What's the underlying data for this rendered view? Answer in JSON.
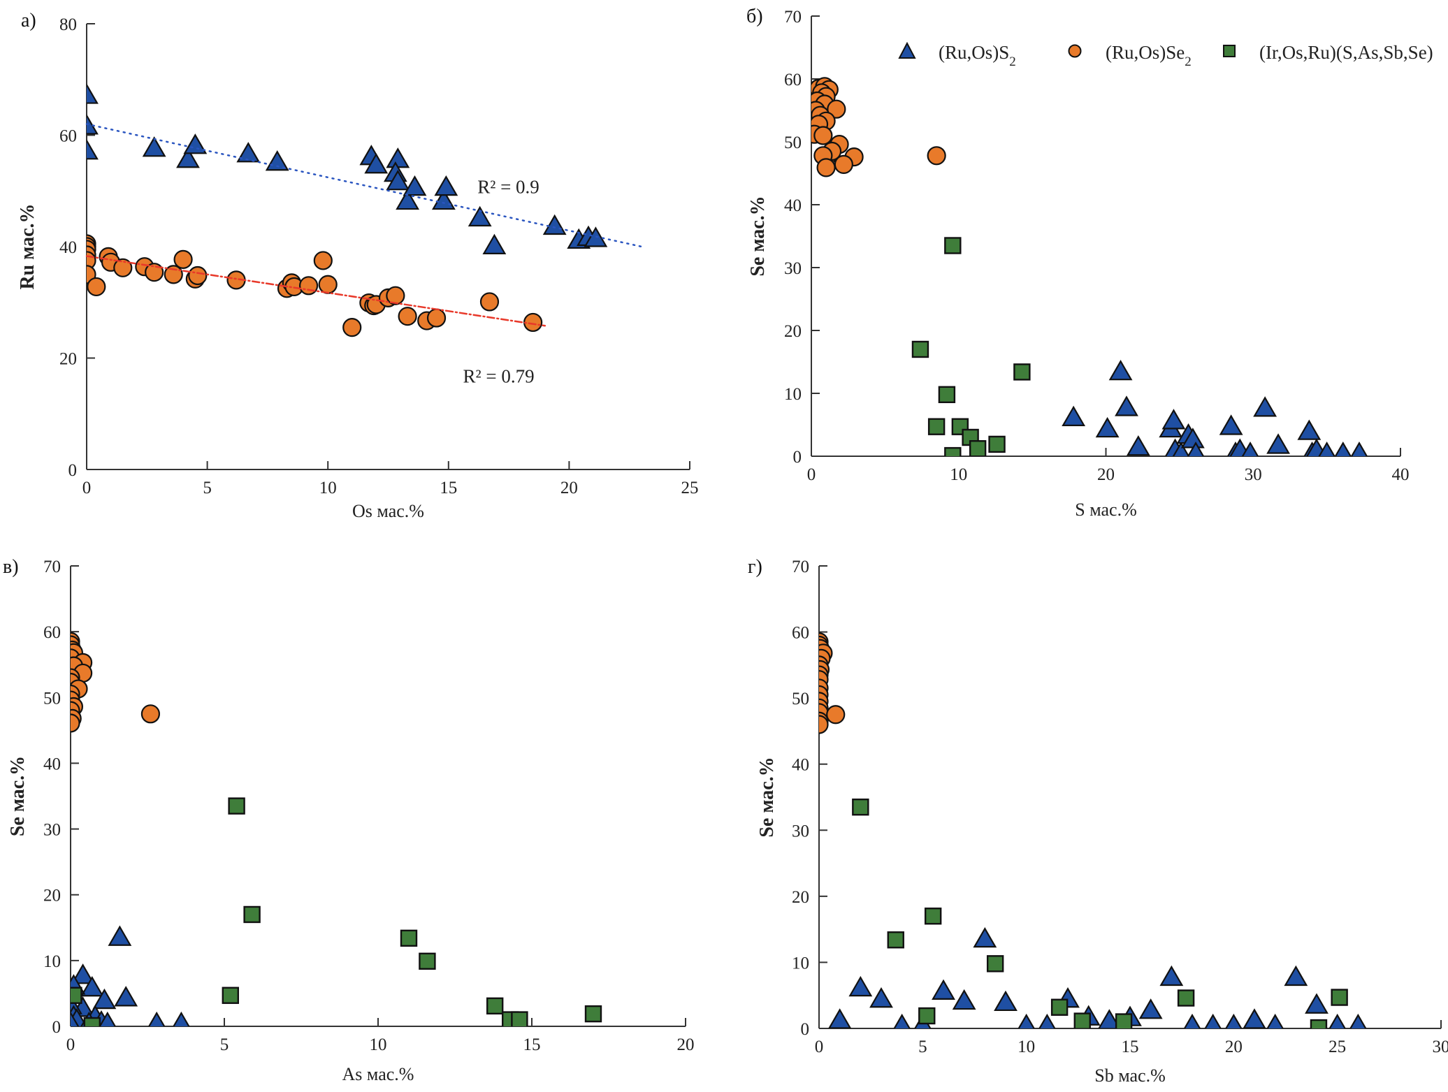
{
  "colors": {
    "ruos_s2": "#1f4fa3",
    "ruos_se2": "#e87a2a",
    "iros": "#3f7d3a",
    "trend_s2": "#2a55c0",
    "trend_se2": "#e8392a",
    "axis": "#333333",
    "outline": "#111111"
  },
  "legend": {
    "items": [
      {
        "key": "ruos_s2",
        "marker": "triangle",
        "label_main": "(Ru,Os)S",
        "label_sub": "2"
      },
      {
        "key": "ruos_se2",
        "marker": "circle",
        "label_main": "(Ru,Os)Se",
        "label_sub": "2"
      },
      {
        "key": "iros",
        "marker": "square",
        "label_main": "(Ir,Os,Ru)(S,As,Sb,Se)",
        "label_sub": ""
      }
    ]
  },
  "chart_data": [
    {
      "id": "a",
      "type": "scatter",
      "panel_label": "а)",
      "xlabel": "Os мас.%",
      "ylabel": "Ru мас.%",
      "xlim": [
        0,
        25
      ],
      "ylim": [
        0,
        80
      ],
      "xticks": [
        0,
        5,
        10,
        15,
        20,
        25
      ],
      "yticks": [
        0,
        20,
        40,
        60,
        80
      ],
      "grid": false,
      "series": [
        {
          "name": "(Ru,Os)S2",
          "key": "ruos_s2",
          "marker": "triangle",
          "points": [
            [
              0,
              67
            ],
            [
              0,
              61.5
            ],
            [
              0,
              57
            ],
            [
              2.8,
              57.5
            ],
            [
              4.2,
              55.5
            ],
            [
              4.5,
              58
            ],
            [
              6.7,
              56.5
            ],
            [
              7.9,
              55
            ],
            [
              11.8,
              56
            ],
            [
              12,
              54.5
            ],
            [
              12.9,
              55.5
            ],
            [
              12.8,
              53
            ],
            [
              12.9,
              51.5
            ],
            [
              13.3,
              48
            ],
            [
              13.6,
              50.5
            ],
            [
              14.8,
              48
            ],
            [
              14.9,
              50.5
            ],
            [
              16.3,
              45
            ],
            [
              16.9,
              40
            ],
            [
              19.4,
              43.5
            ],
            [
              20.4,
              41
            ],
            [
              20.8,
              41.5
            ],
            [
              21.1,
              41.3
            ]
          ]
        },
        {
          "name": "(Ru,Os)Se2",
          "key": "ruos_se2",
          "marker": "circle",
          "points": [
            [
              0,
              40.5
            ],
            [
              0,
              40
            ],
            [
              0,
              39.5
            ],
            [
              0,
              38.5
            ],
            [
              0,
              37.5
            ],
            [
              0,
              35
            ],
            [
              0.4,
              32.8
            ],
            [
              0.9,
              38.2
            ],
            [
              1,
              37.2
            ],
            [
              1.5,
              36.2
            ],
            [
              2.4,
              36.4
            ],
            [
              2.8,
              35.4
            ],
            [
              3.6,
              35
            ],
            [
              4,
              37.7
            ],
            [
              4.5,
              34.2
            ],
            [
              4.6,
              34.8
            ],
            [
              6.2,
              34
            ],
            [
              8.3,
              32.5
            ],
            [
              8.5,
              33.5
            ],
            [
              8.6,
              32.8
            ],
            [
              9.2,
              33
            ],
            [
              9.8,
              37.5
            ],
            [
              10,
              33.2
            ],
            [
              11,
              25.5
            ],
            [
              11.7,
              29.9
            ],
            [
              11.9,
              29.4
            ],
            [
              12,
              29.6
            ],
            [
              12.5,
              30.8
            ],
            [
              12.8,
              31.2
            ],
            [
              13.3,
              27.5
            ],
            [
              14.1,
              26.7
            ],
            [
              14.5,
              27.2
            ],
            [
              16.7,
              30.1
            ],
            [
              18.5,
              26.4
            ]
          ]
        }
      ],
      "trendlines": [
        {
          "series": "(Ru,Os)S2",
          "style": "dotted",
          "x": [
            0,
            23
          ],
          "y": [
            62,
            40
          ],
          "label": "R² = 0.9",
          "r2": 0.9
        },
        {
          "series": "(Ru,Os)Se2",
          "style": "dash-dot",
          "x": [
            0,
            19
          ],
          "y": [
            38.3,
            25.8
          ],
          "label": "R² = 0.79",
          "r2": 0.79
        }
      ]
    },
    {
      "id": "b",
      "type": "scatter",
      "panel_label": "б)",
      "xlabel": "S мас.%",
      "ylabel": "Se мас.%",
      "xlim": [
        0,
        40
      ],
      "ylim": [
        0,
        70
      ],
      "xticks": [
        0,
        10,
        20,
        30,
        40
      ],
      "yticks": [
        0,
        10,
        20,
        30,
        40,
        50,
        60,
        70
      ],
      "grid": false,
      "legend_position": "top",
      "series": [
        {
          "name": "(Ru,Os)S2",
          "key": "ruos_s2",
          "marker": "triangle",
          "points": [
            [
              17.8,
              6
            ],
            [
              20.1,
              4.2
            ],
            [
              21,
              13.3
            ],
            [
              21.4,
              7.6
            ],
            [
              22.2,
              1.3
            ],
            [
              24.4,
              4.2
            ],
            [
              24.6,
              5.5
            ],
            [
              24.7,
              0.8
            ],
            [
              25.1,
              0.3
            ],
            [
              25.6,
              3.2
            ],
            [
              25.9,
              2.5
            ],
            [
              26.1,
              0.3
            ],
            [
              28.5,
              4.6
            ],
            [
              28.8,
              0.3
            ],
            [
              29.1,
              0.8
            ],
            [
              29.8,
              0.3
            ],
            [
              30.8,
              7.5
            ],
            [
              31.7,
              1.6
            ],
            [
              33.8,
              3.8
            ],
            [
              34,
              0.3
            ],
            [
              34.3,
              0.8
            ],
            [
              35,
              0.3
            ],
            [
              36.1,
              0.3
            ],
            [
              37.2,
              0.3
            ]
          ]
        },
        {
          "name": "(Ru,Os)Se2",
          "key": "ruos_se2",
          "marker": "circle",
          "points": [
            [
              0.2,
              58
            ],
            [
              0.5,
              58.5
            ],
            [
              0.9,
              58.8
            ],
            [
              1.2,
              58.3
            ],
            [
              0.7,
              57.8
            ],
            [
              1,
              57.2
            ],
            [
              0.4,
              56.5
            ],
            [
              0.9,
              56
            ],
            [
              1.7,
              55.2
            ],
            [
              0.3,
              55
            ],
            [
              0.6,
              54.2
            ],
            [
              1,
              53.3
            ],
            [
              0.5,
              52.8
            ],
            [
              0.2,
              51.2
            ],
            [
              0.8,
              51
            ],
            [
              1.9,
              49.6
            ],
            [
              1.2,
              48
            ],
            [
              1.4,
              48.5
            ],
            [
              0.8,
              47.8
            ],
            [
              2.9,
              47.6
            ],
            [
              2.2,
              46.4
            ],
            [
              1,
              45.9
            ],
            [
              8.5,
              47.8
            ]
          ]
        },
        {
          "name": "(Ir,Os,Ru)(S,As,Sb,Se)",
          "key": "iros",
          "marker": "square",
          "points": [
            [
              9.6,
              33.5
            ],
            [
              7.4,
              17
            ],
            [
              14.3,
              13.4
            ],
            [
              9.2,
              9.8
            ],
            [
              8.5,
              4.7
            ],
            [
              10.1,
              4.7
            ],
            [
              10.8,
              3
            ],
            [
              11.3,
              1.2
            ],
            [
              12.6,
              1.9
            ],
            [
              9.6,
              0.1
            ]
          ]
        }
      ]
    },
    {
      "id": "c",
      "type": "scatter",
      "panel_label": "в)",
      "xlabel": "As мас.%",
      "ylabel": "Se мас.%",
      "xlim": [
        0,
        20
      ],
      "ylim": [
        0,
        70
      ],
      "xticks": [
        0,
        5,
        10,
        15,
        20
      ],
      "yticks": [
        0,
        10,
        20,
        30,
        40,
        50,
        60,
        70
      ],
      "grid": false,
      "series": [
        {
          "name": "(Ru,Os)S2",
          "key": "ruos_s2",
          "marker": "triangle",
          "points": [
            [
              1.6,
              13.4
            ],
            [
              0.4,
              7.6
            ],
            [
              0.7,
              5.7
            ],
            [
              0.1,
              6
            ],
            [
              1.8,
              4.2
            ],
            [
              1.1,
              3.8
            ],
            [
              0.4,
              2.6
            ],
            [
              0,
              3
            ],
            [
              0.1,
              1.3
            ],
            [
              0.2,
              0.8
            ],
            [
              0.8,
              1.3
            ],
            [
              1,
              0.5
            ],
            [
              1.2,
              0.3
            ],
            [
              0.6,
              0.3
            ],
            [
              0,
              0.3
            ],
            [
              2.8,
              0.3
            ],
            [
              3.6,
              0.3
            ]
          ]
        },
        {
          "name": "(Ru,Os)Se2",
          "key": "ruos_se2",
          "marker": "circle",
          "points": [
            [
              0,
              58.5
            ],
            [
              0,
              58
            ],
            [
              0.05,
              57.2
            ],
            [
              0.1,
              56.8
            ],
            [
              0,
              56
            ],
            [
              0.4,
              55.3
            ],
            [
              0.1,
              54.8
            ],
            [
              0.4,
              53.7
            ],
            [
              0,
              53
            ],
            [
              0,
              52.3
            ],
            [
              0.25,
              51.3
            ],
            [
              0,
              50.5
            ],
            [
              0,
              49.6
            ],
            [
              0.1,
              48.6
            ],
            [
              0,
              48
            ],
            [
              0.05,
              46.8
            ],
            [
              0,
              46.1
            ],
            [
              2.6,
              47.5
            ]
          ]
        },
        {
          "name": "(Ir,Os,Ru)(S,As,Sb,Se)",
          "key": "iros",
          "marker": "square",
          "points": [
            [
              5.4,
              33.5
            ],
            [
              5.9,
              17
            ],
            [
              11,
              13.4
            ],
            [
              11.6,
              9.9
            ],
            [
              5.2,
              4.7
            ],
            [
              0.1,
              4.7
            ],
            [
              13.8,
              3.1
            ],
            [
              14.3,
              1
            ],
            [
              14.6,
              1
            ],
            [
              17,
              1.9
            ],
            [
              0.7,
              0.1
            ]
          ]
        }
      ]
    },
    {
      "id": "d",
      "type": "scatter",
      "panel_label": "г)",
      "xlabel": "Sb мас.%",
      "ylabel": "Se мас.%",
      "xlim": [
        0,
        30
      ],
      "ylim": [
        0,
        70
      ],
      "xticks": [
        0,
        5,
        10,
        15,
        20,
        25,
        30
      ],
      "yticks": [
        0,
        10,
        20,
        30,
        40,
        50,
        60,
        70
      ],
      "grid": false,
      "series": [
        {
          "name": "(Ru,Os)S2",
          "key": "ruos_s2",
          "marker": "triangle",
          "points": [
            [
              1,
              1.1
            ],
            [
              2,
              6
            ],
            [
              3,
              4.3
            ],
            [
              4,
              0.3
            ],
            [
              5,
              0.3
            ],
            [
              6,
              5.5
            ],
            [
              7,
              4
            ],
            [
              8,
              13.4
            ],
            [
              9,
              3.8
            ],
            [
              10,
              0.3
            ],
            [
              11,
              0.3
            ],
            [
              12,
              4.3
            ],
            [
              13,
              1.6
            ],
            [
              14,
              1
            ],
            [
              15,
              1.5
            ],
            [
              16,
              2.6
            ],
            [
              17,
              7.6
            ],
            [
              18,
              0.3
            ],
            [
              19,
              0.3
            ],
            [
              20,
              0.3
            ],
            [
              21,
              1.1
            ],
            [
              22,
              0.3
            ],
            [
              23,
              7.6
            ],
            [
              24,
              3.4
            ],
            [
              25,
              0.3
            ],
            [
              26,
              0.3
            ]
          ]
        },
        {
          "name": "(Ru,Os)Se2",
          "key": "ruos_se2",
          "marker": "circle",
          "points": [
            [
              0,
              58.5
            ],
            [
              0,
              58
            ],
            [
              0.05,
              57.5
            ],
            [
              0.2,
              56.8
            ],
            [
              0.1,
              56
            ],
            [
              0,
              55
            ],
            [
              0.05,
              54.3
            ],
            [
              0,
              53.5
            ],
            [
              0,
              52.8
            ],
            [
              0,
              51.5
            ],
            [
              0,
              50.5
            ],
            [
              0,
              49.5
            ],
            [
              0,
              48.5
            ],
            [
              0,
              47.8
            ],
            [
              0,
              46.5
            ],
            [
              0,
              46
            ],
            [
              0.8,
              47.5
            ]
          ]
        },
        {
          "name": "(Ir,Os,Ru)(S,As,Sb,Se)",
          "key": "iros",
          "marker": "square",
          "points": [
            [
              2,
              33.5
            ],
            [
              5.5,
              17
            ],
            [
              3.7,
              13.4
            ],
            [
              8.5,
              9.8
            ],
            [
              5.2,
              1.9
            ],
            [
              11.6,
              3.2
            ],
            [
              12.7,
              1.1
            ],
            [
              14.7,
              1
            ],
            [
              17.7,
              4.6
            ],
            [
              25.1,
              4.7
            ],
            [
              24.1,
              0.1
            ]
          ]
        }
      ]
    }
  ]
}
